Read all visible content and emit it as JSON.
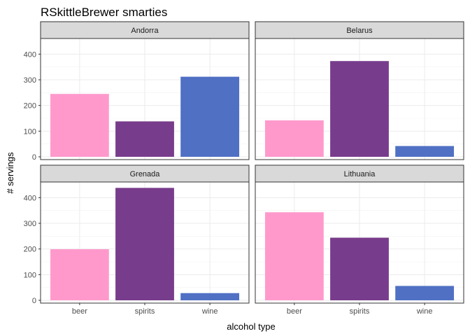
{
  "chart_data": {
    "type": "bar",
    "title": "RSkittleBrewer smarties",
    "xlabel": "alcohol type",
    "ylabel": "# servings",
    "ylim": [
      0,
      450
    ],
    "yticks": [
      "0",
      "100",
      "200",
      "300",
      "400"
    ],
    "categories": [
      "beer",
      "spirits",
      "wine"
    ],
    "colors": {
      "beer": "#FF99CC",
      "spirits": "#783C8C",
      "wine": "#5070C4"
    },
    "grid": true,
    "legend": "none",
    "facets": [
      {
        "name": "Andorra",
        "values": [
          245,
          138,
          312
        ]
      },
      {
        "name": "Belarus",
        "values": [
          142,
          373,
          42
        ]
      },
      {
        "name": "Grenada",
        "values": [
          199,
          438,
          28
        ]
      },
      {
        "name": "Lithuania",
        "values": [
          343,
          244,
          56
        ]
      }
    ]
  }
}
